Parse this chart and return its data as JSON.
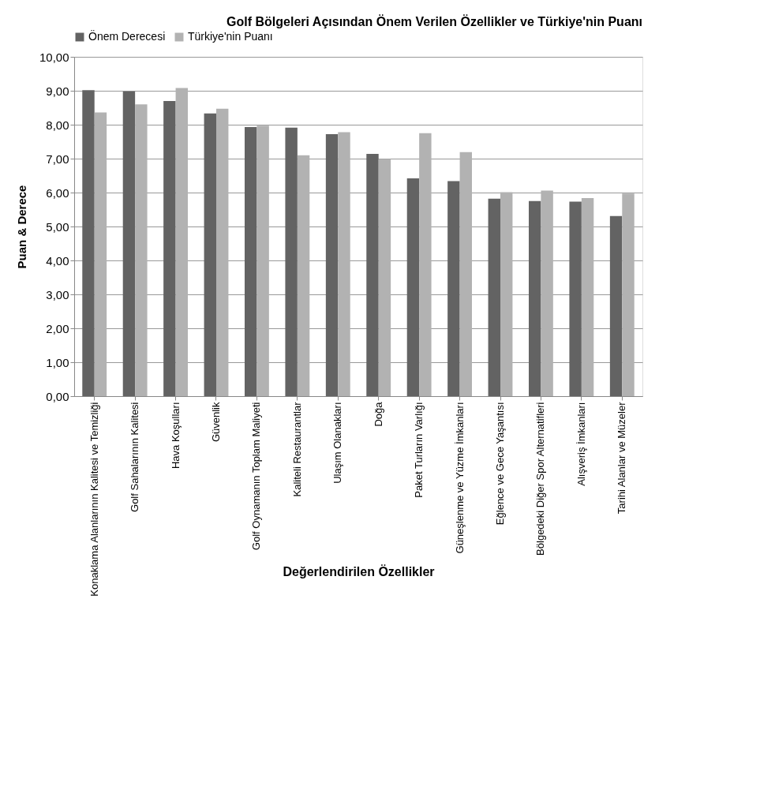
{
  "chart_data": {
    "type": "bar",
    "title": "Golf Bölgeleri Açısından Önem Verilen Özellikler ve Türkiye'nin Puanı",
    "xlabel": "Değerlendirilen Özellikler",
    "ylabel": "Puan  & Derece",
    "categories": [
      "Konaklama Alanlarının Kalitesi ve Temizliği",
      "Golf Sahalarının Kalitesi",
      "Hava Koşulları",
      "Güvenlik",
      "Golf Oynamanın Toplam Maliyeti",
      "Kaliteli Restaurantlar",
      "Ulaşım Olanakları",
      "Doğa",
      "Paket Turların Varlığı",
      "Güneşlenme ve Yüzme İmkanları",
      "Eğlence ve Gece Yaşantısı",
      "Bölgedeki Diğer Spor Alternatifleri",
      "Alışveriş İmkanları",
      "Tarihi Alanlar ve Müzeler"
    ],
    "series": [
      {
        "name": "Önem Derecesi",
        "color": "#636363",
        "values": [
          9.02,
          8.98,
          8.7,
          8.33,
          7.93,
          7.91,
          7.72,
          7.14,
          6.42,
          6.34,
          5.82,
          5.75,
          5.73,
          5.31
        ]
      },
      {
        "name": "Türkiye'nin Puanı",
        "color": "#b2b2b2",
        "values": [
          8.36,
          8.6,
          9.08,
          8.47,
          7.97,
          7.1,
          7.78,
          6.99,
          7.75,
          7.19,
          6.01,
          6.06,
          5.84,
          5.97
        ]
      }
    ],
    "ylim": [
      0,
      10
    ],
    "yticks": [
      {
        "value": 0,
        "label": "0,00"
      },
      {
        "value": 1,
        "label": "1,00"
      },
      {
        "value": 2,
        "label": "2,00"
      },
      {
        "value": 3,
        "label": "3,00"
      },
      {
        "value": 4,
        "label": "4,00"
      },
      {
        "value": 5,
        "label": "5,00"
      },
      {
        "value": 6,
        "label": "6,00"
      },
      {
        "value": 7,
        "label": "7,00"
      },
      {
        "value": 8,
        "label": "8,00"
      },
      {
        "value": 9,
        "label": "9,00"
      },
      {
        "value": 10,
        "label": "10,00"
      }
    ],
    "grid": "y",
    "legend": "top"
  }
}
